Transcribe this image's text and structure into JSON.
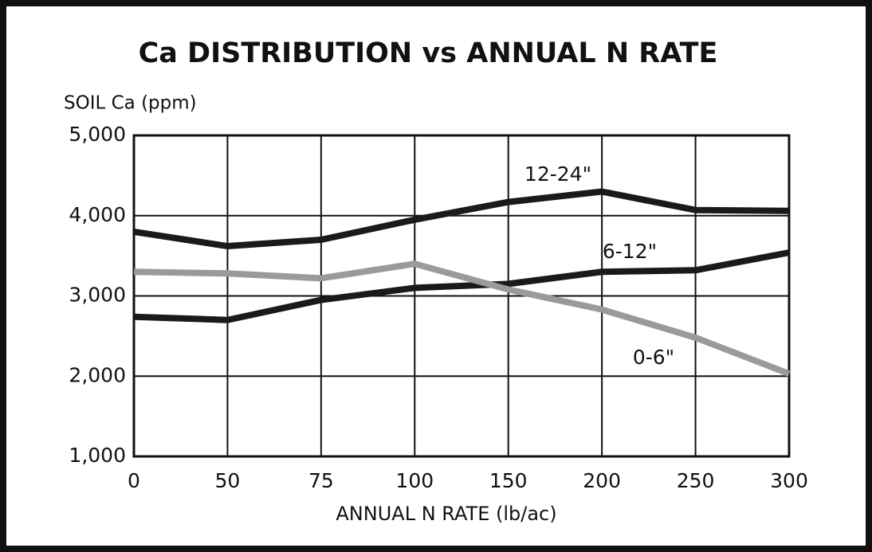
{
  "chart_data": {
    "type": "line",
    "title": "Ca DISTRIBUTION vs ANNUAL N RATE",
    "y_label": "SOIL Ca (ppm)",
    "x_label": "ANNUAL N RATE (lb/ac)",
    "categories": [
      "0",
      "50",
      "75",
      "100",
      "150",
      "200",
      "250",
      "300"
    ],
    "series": [
      {
        "name": "12-24\"",
        "color": "#1a1a1a",
        "values": [
          3800,
          3620,
          3700,
          3950,
          4170,
          4300,
          4070,
          4060
        ]
      },
      {
        "name": "6-12\"",
        "color": "#1a1a1a",
        "values": [
          2740,
          2700,
          2950,
          3100,
          3150,
          3300,
          3320,
          3540
        ]
      },
      {
        "name": "0-6\"",
        "color": "#9a9a9a",
        "values": [
          3300,
          3280,
          3220,
          3400,
          3080,
          2830,
          2480,
          2030
        ]
      }
    ],
    "ylim": [
      1000,
      5000
    ],
    "yticks": [
      {
        "value": 1000,
        "label": "1,000"
      },
      {
        "value": 2000,
        "label": "2,000"
      },
      {
        "value": 3000,
        "label": "3,000"
      },
      {
        "value": 4000,
        "label": "4,000"
      },
      {
        "value": 5000,
        "label": "5,000"
      }
    ],
    "grid": true
  }
}
